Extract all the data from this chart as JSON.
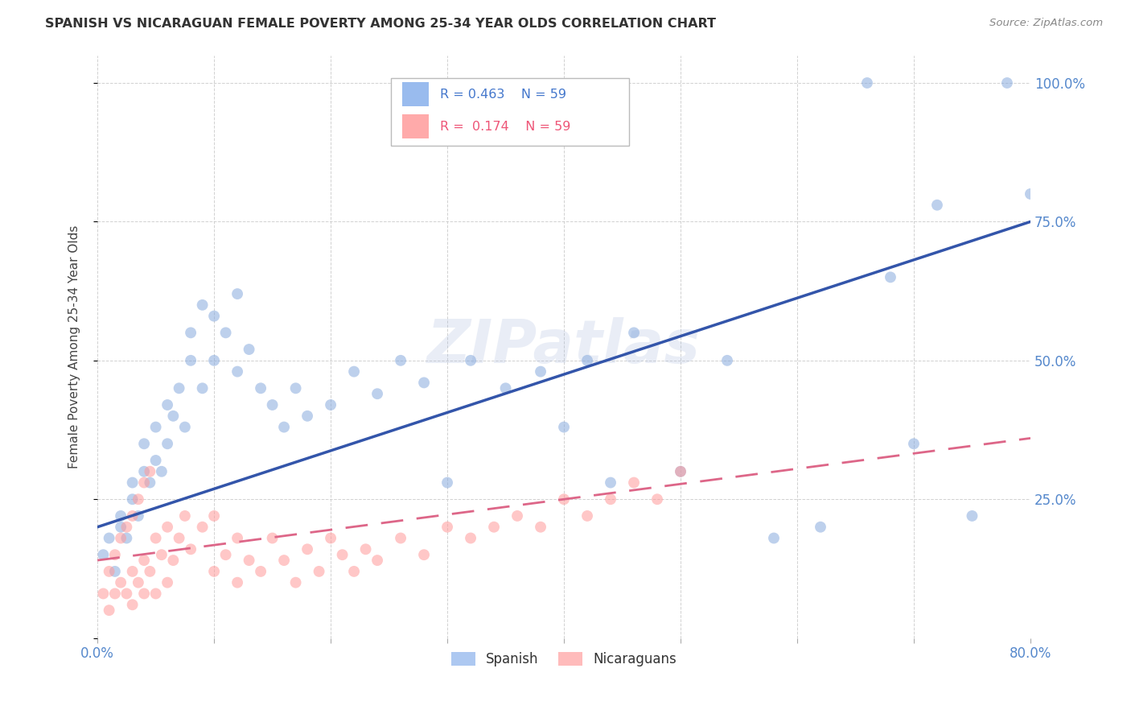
{
  "title": "SPANISH VS NICARAGUAN FEMALE POVERTY AMONG 25-34 YEAR OLDS CORRELATION CHART",
  "source": "Source: ZipAtlas.com",
  "ylabel": "Female Poverty Among 25-34 Year Olds",
  "watermark": "ZIPatlas",
  "legend_r1": "R = 0.463",
  "legend_n1": "N = 59",
  "legend_r2": "R =  0.174",
  "legend_n2": "N = 59",
  "legend_label1": "Spanish",
  "legend_label2": "Nicaraguans",
  "blue_color": "#88AADD",
  "pink_color": "#FF9999",
  "blue_line_color": "#3355AA",
  "pink_line_color": "#DD6688",
  "blue_legend_color": "#99BBEE",
  "pink_legend_color": "#FFAAAA",
  "spanish_x": [
    0.005,
    0.01,
    0.015,
    0.02,
    0.02,
    0.025,
    0.03,
    0.03,
    0.035,
    0.04,
    0.04,
    0.045,
    0.05,
    0.05,
    0.055,
    0.06,
    0.06,
    0.065,
    0.07,
    0.075,
    0.08,
    0.08,
    0.09,
    0.09,
    0.1,
    0.1,
    0.11,
    0.12,
    0.12,
    0.13,
    0.14,
    0.15,
    0.16,
    0.17,
    0.18,
    0.2,
    0.22,
    0.24,
    0.26,
    0.28,
    0.3,
    0.32,
    0.35,
    0.38,
    0.4,
    0.42,
    0.44,
    0.46,
    0.5,
    0.54,
    0.58,
    0.62,
    0.66,
    0.68,
    0.7,
    0.72,
    0.75,
    0.78,
    0.8
  ],
  "spanish_y": [
    0.15,
    0.18,
    0.12,
    0.2,
    0.22,
    0.18,
    0.25,
    0.28,
    0.22,
    0.3,
    0.35,
    0.28,
    0.32,
    0.38,
    0.3,
    0.42,
    0.35,
    0.4,
    0.45,
    0.38,
    0.5,
    0.55,
    0.45,
    0.6,
    0.58,
    0.5,
    0.55,
    0.62,
    0.48,
    0.52,
    0.45,
    0.42,
    0.38,
    0.45,
    0.4,
    0.42,
    0.48,
    0.44,
    0.5,
    0.46,
    0.28,
    0.5,
    0.45,
    0.48,
    0.38,
    0.5,
    0.28,
    0.55,
    0.3,
    0.5,
    0.18,
    0.2,
    1.0,
    0.65,
    0.35,
    0.78,
    0.22,
    1.0,
    0.8
  ],
  "nicaraguan_x": [
    0.005,
    0.01,
    0.01,
    0.015,
    0.015,
    0.02,
    0.02,
    0.025,
    0.025,
    0.03,
    0.03,
    0.03,
    0.035,
    0.035,
    0.04,
    0.04,
    0.04,
    0.045,
    0.045,
    0.05,
    0.05,
    0.055,
    0.06,
    0.06,
    0.065,
    0.07,
    0.075,
    0.08,
    0.09,
    0.1,
    0.1,
    0.11,
    0.12,
    0.12,
    0.13,
    0.14,
    0.15,
    0.16,
    0.17,
    0.18,
    0.19,
    0.2,
    0.21,
    0.22,
    0.23,
    0.24,
    0.26,
    0.28,
    0.3,
    0.32,
    0.34,
    0.36,
    0.38,
    0.4,
    0.42,
    0.44,
    0.46,
    0.48,
    0.5
  ],
  "nicaraguan_y": [
    0.08,
    0.05,
    0.12,
    0.08,
    0.15,
    0.1,
    0.18,
    0.08,
    0.2,
    0.06,
    0.12,
    0.22,
    0.1,
    0.25,
    0.08,
    0.14,
    0.28,
    0.12,
    0.3,
    0.08,
    0.18,
    0.15,
    0.1,
    0.2,
    0.14,
    0.18,
    0.22,
    0.16,
    0.2,
    0.12,
    0.22,
    0.15,
    0.1,
    0.18,
    0.14,
    0.12,
    0.18,
    0.14,
    0.1,
    0.16,
    0.12,
    0.18,
    0.15,
    0.12,
    0.16,
    0.14,
    0.18,
    0.15,
    0.2,
    0.18,
    0.2,
    0.22,
    0.2,
    0.25,
    0.22,
    0.25,
    0.28,
    0.25,
    0.3
  ],
  "xmin": 0.0,
  "xmax": 0.8,
  "ymin": 0.0,
  "ymax": 1.05,
  "yticks": [
    0.0,
    0.25,
    0.5,
    0.75,
    1.0
  ],
  "ytick_labels": [
    "",
    "25.0%",
    "50.0%",
    "75.0%",
    "100.0%"
  ],
  "xticks": [
    0.0,
    0.1,
    0.2,
    0.3,
    0.4,
    0.5,
    0.6,
    0.7,
    0.8
  ],
  "blue_trend_x0": 0.0,
  "blue_trend_x1": 0.8,
  "blue_trend_y0": 0.2,
  "blue_trend_y1": 0.75,
  "pink_trend_x0": 0.0,
  "pink_trend_x1": 0.8,
  "pink_trend_y0": 0.14,
  "pink_trend_y1": 0.36
}
